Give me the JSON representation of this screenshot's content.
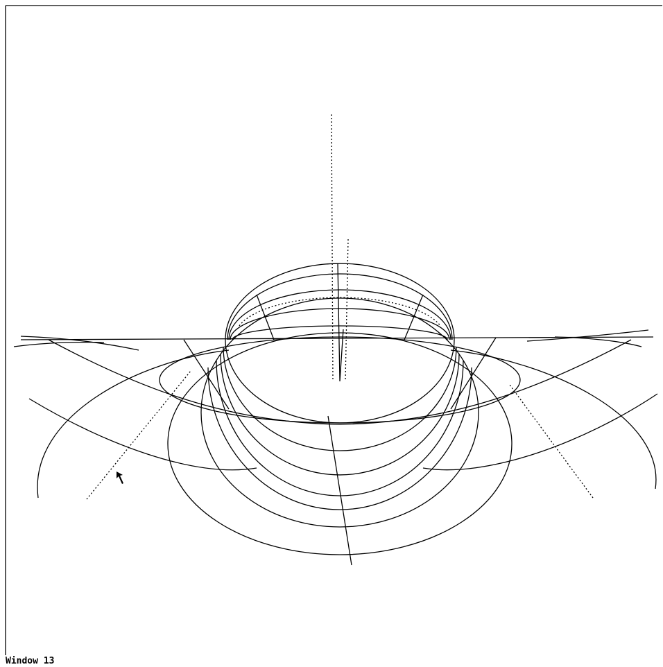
{
  "window": {
    "title": "Window 13"
  }
}
